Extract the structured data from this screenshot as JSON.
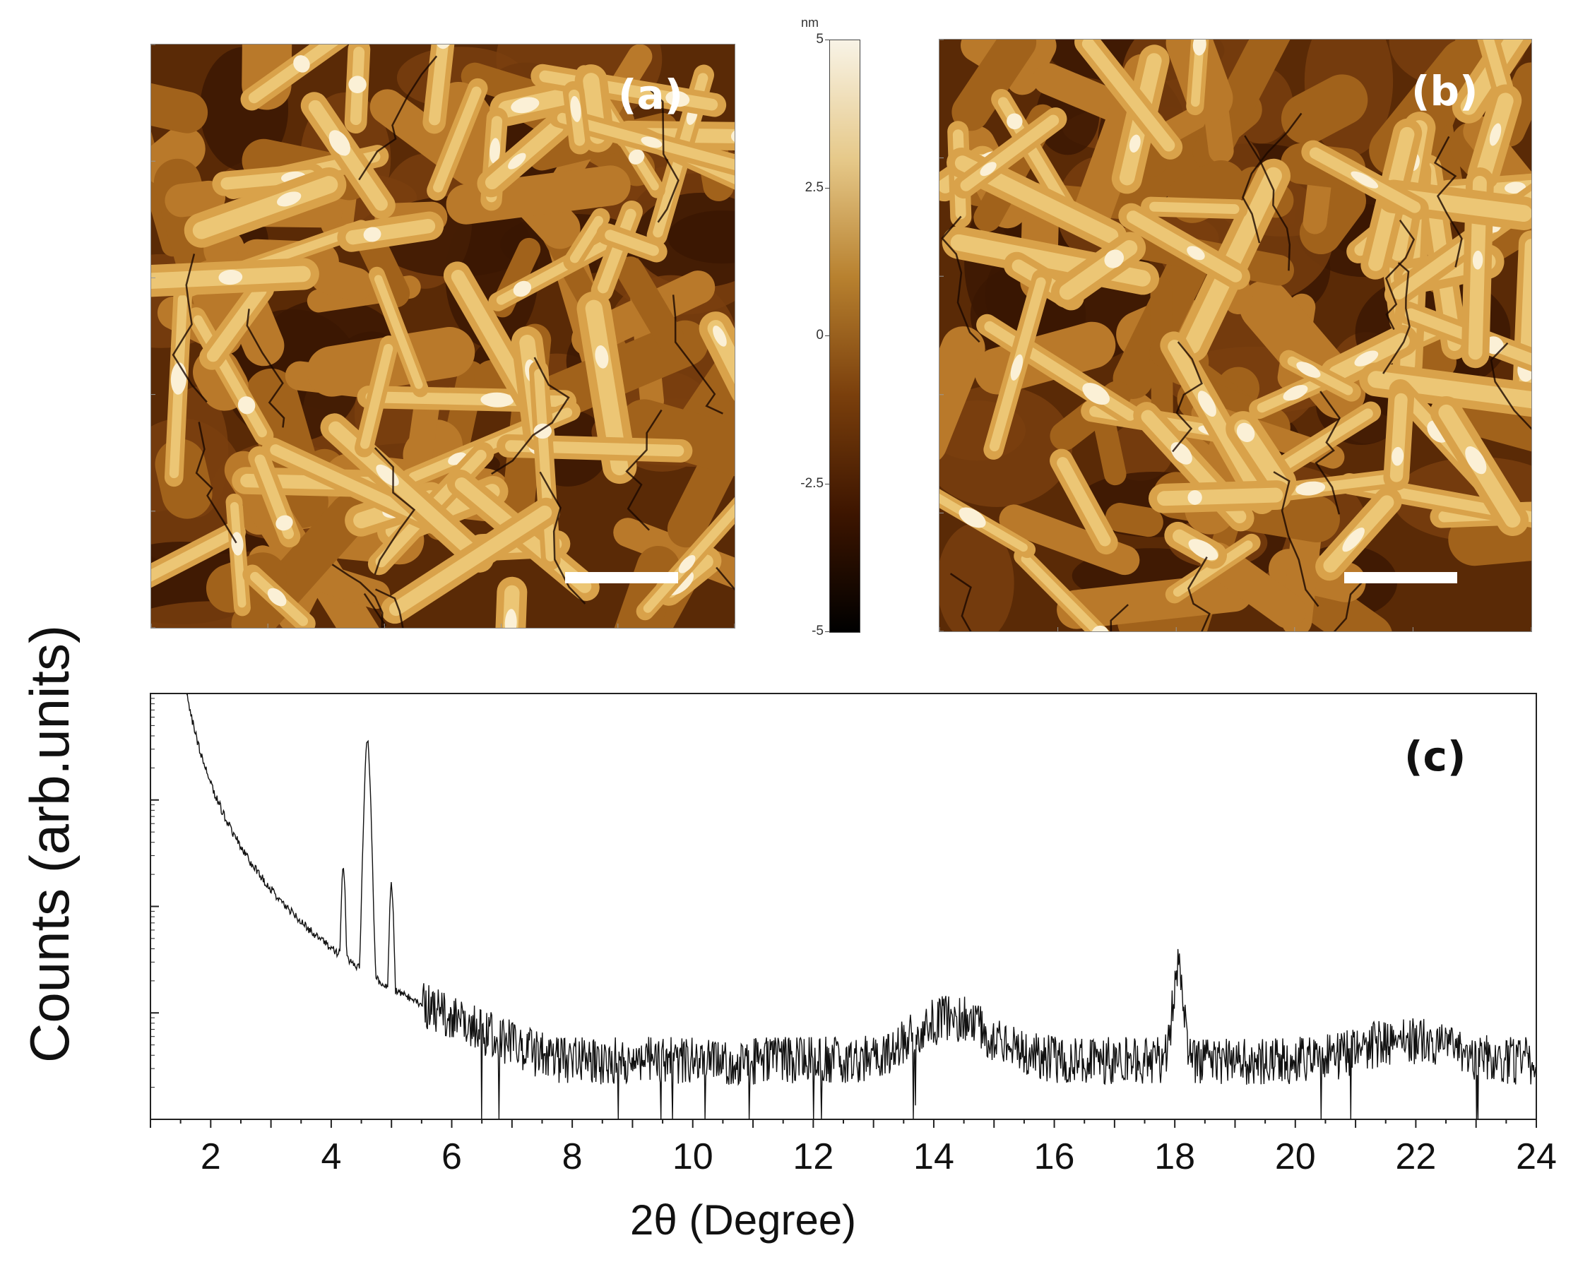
{
  "panels": {
    "a": {
      "label": "(a)"
    },
    "b": {
      "label": "(b)"
    },
    "c": {
      "label": "(c)"
    }
  },
  "colorbar": {
    "unit": "nm",
    "ticks": [
      "5",
      "2.5",
      "0",
      "-2.5",
      "-5"
    ],
    "colors": [
      "#f8f3e6",
      "#e6c98a",
      "#b8812f",
      "#7a3f0c",
      "#3d1500",
      "#000000"
    ]
  },
  "chart_data": {
    "type": "line",
    "title": "",
    "xlabel": "2θ (Degree)",
    "ylabel": "Counts (arb.units)",
    "xlim": [
      1,
      24
    ],
    "ylim": [
      0,
      4
    ],
    "yscale": "log (arbitrary)",
    "x_ticks": [
      "2",
      "4",
      "6",
      "8",
      "10",
      "12",
      "14",
      "16",
      "18",
      "20",
      "22",
      "24"
    ],
    "x_tick_values": [
      2,
      4,
      6,
      8,
      10,
      12,
      14,
      16,
      18,
      20,
      22,
      24
    ],
    "features": [
      {
        "name": "background-decay",
        "x_start": 1.6,
        "y_start": 4.0
      },
      {
        "name": "peak",
        "x": 4.6,
        "y": 3.55
      },
      {
        "name": "side-peak",
        "x": 4.2,
        "y": 2.4
      },
      {
        "name": "side-peak",
        "x": 5.0,
        "y": 2.2
      },
      {
        "name": "broad-hump",
        "x": 14.3,
        "y": 0.95
      },
      {
        "name": "peak",
        "x": 18.05,
        "y": 1.4
      },
      {
        "name": "broad-hump",
        "x": 21.8,
        "y": 0.75
      }
    ],
    "noise_baseline": 0.55
  }
}
